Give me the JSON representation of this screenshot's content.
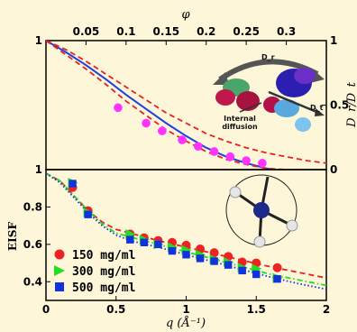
{
  "colors": {
    "background": "#fdf6d8",
    "blue_line": "#1f3fe0",
    "red_dash": "#e52222",
    "magenta": "#ff33ff",
    "red": "#ee2222",
    "green": "#22dd22",
    "blue": "#1133dd"
  },
  "labels": {
    "top_axis_symbol": "φ",
    "x_axis_title": "q (Å⁻¹)",
    "bottom_ylabel": "EISF",
    "right_ylabel": "D_r/D_t",
    "inset_dr": "D_r",
    "inset_dt": "D_t",
    "inset_internal_1": "Internal",
    "inset_internal_2": "diffusion"
  },
  "chart_data": [
    {
      "type": "scatter",
      "panel": "top",
      "top_axis": {
        "symbol": "φ",
        "ticks": [
          0.05,
          0.1,
          0.15,
          0.2,
          0.25,
          0.3
        ],
        "tick_labels": [
          "0.05",
          "0.1",
          "0.15",
          "0.2",
          "0.25",
          "0.3"
        ],
        "xlim": [
          0,
          0.35
        ]
      },
      "right_axis": {
        "label": "D_r/D_t",
        "ticks": [
          0,
          0.5,
          1
        ],
        "tick_labels": [
          "0",
          "0.5",
          "1"
        ],
        "ylim": [
          0,
          1
        ]
      },
      "left_axis": {
        "ticks": [
          1
        ],
        "tick_labels": [
          "1"
        ]
      },
      "series": [
        {
          "style": "marker",
          "x": [
            0.09,
            0.125,
            0.145,
            0.17,
            0.19,
            0.21,
            0.23,
            0.25,
            0.27
          ],
          "y": [
            0.48,
            0.36,
            0.3,
            0.23,
            0.18,
            0.14,
            0.1,
            0.07,
            0.05
          ]
        },
        {
          "style": "solid-line",
          "x": [
            0.0,
            0.025,
            0.05,
            0.075,
            0.1,
            0.125,
            0.15,
            0.175,
            0.2,
            0.225,
            0.25,
            0.275,
            0.3,
            0.325
          ],
          "y": [
            1.0,
            0.91,
            0.81,
            0.7,
            0.58,
            0.47,
            0.36,
            0.26,
            0.17,
            0.1,
            0.05,
            0.01,
            -0.02,
            -0.03
          ]
        },
        {
          "style": "dashed-upper",
          "x": [
            0.0,
            0.025,
            0.05,
            0.075,
            0.1,
            0.125,
            0.15,
            0.175,
            0.2,
            0.225,
            0.25,
            0.275,
            0.3,
            0.325,
            0.35
          ],
          "y": [
            1.0,
            0.93,
            0.84,
            0.74,
            0.64,
            0.54,
            0.44,
            0.36,
            0.28,
            0.22,
            0.17,
            0.13,
            0.1,
            0.07,
            0.05
          ]
        },
        {
          "style": "dashed-lower",
          "x": [
            0.0,
            0.025,
            0.05,
            0.075,
            0.1,
            0.125,
            0.15,
            0.175,
            0.2,
            0.225,
            0.25,
            0.275,
            0.3,
            0.325,
            0.35
          ],
          "y": [
            1.0,
            0.89,
            0.78,
            0.66,
            0.53,
            0.42,
            0.31,
            0.22,
            0.14,
            0.08,
            0.04,
            0.01,
            0.0,
            0.0,
            0.0
          ]
        }
      ]
    },
    {
      "type": "scatter",
      "panel": "bottom",
      "xlabel": "q (Å⁻¹)",
      "ylabel": "EISF",
      "xlim": [
        0,
        2
      ],
      "ylim": [
        0.3,
        1.0
      ],
      "x_ticks": [
        0,
        0.5,
        1,
        1.5,
        2
      ],
      "x_tick_labels": [
        "0",
        "0.5",
        "1",
        "1.5",
        "2"
      ],
      "y_ticks": [
        0.4,
        0.6,
        0.8,
        1
      ],
      "y_tick_labels": [
        "0.4",
        "0.6",
        "0.8",
        "1"
      ],
      "legend_position": "bottom-left",
      "series": [
        {
          "name": "150 mg/ml",
          "marker": "circle",
          "x": [
            0.19,
            0.3,
            0.6,
            0.7,
            0.8,
            0.9,
            1.0,
            1.1,
            1.2,
            1.3,
            1.4,
            1.5,
            1.65
          ],
          "y": [
            0.905,
            0.78,
            0.655,
            0.635,
            0.62,
            0.61,
            0.595,
            0.575,
            0.555,
            0.535,
            0.505,
            0.5,
            0.475
          ]
        },
        {
          "name": "300 mg/ml",
          "marker": "triangle-right",
          "x": [
            0.19,
            0.3,
            0.6,
            0.7,
            0.8,
            0.9,
            1.0,
            1.1,
            1.2,
            1.3,
            1.4,
            1.5,
            1.65
          ],
          "y": [
            0.93,
            0.77,
            0.655,
            0.625,
            0.6,
            0.585,
            0.57,
            0.545,
            0.52,
            0.505,
            0.475,
            0.47,
            0.42
          ]
        },
        {
          "name": "500 mg/ml",
          "marker": "square",
          "x": [
            0.19,
            0.3,
            0.6,
            0.7,
            0.8,
            0.9,
            1.0,
            1.1,
            1.2,
            1.3,
            1.4,
            1.5,
            1.65
          ],
          "y": [
            0.925,
            0.76,
            0.625,
            0.61,
            0.6,
            0.565,
            0.545,
            0.525,
            0.51,
            0.49,
            0.46,
            0.44,
            0.415
          ]
        },
        {
          "style": "dashed-red",
          "x": [
            0.0,
            0.1,
            0.2,
            0.3,
            0.4,
            0.5,
            0.6,
            0.8,
            1.0,
            1.2,
            1.4,
            1.6,
            1.8,
            2.0
          ],
          "y": [
            0.98,
            0.94,
            0.86,
            0.78,
            0.72,
            0.68,
            0.66,
            0.62,
            0.585,
            0.55,
            0.515,
            0.48,
            0.45,
            0.42
          ]
        },
        {
          "style": "dashdot-green",
          "x": [
            0.0,
            0.1,
            0.2,
            0.3,
            0.4,
            0.5,
            0.6,
            0.8,
            1.0,
            1.2,
            1.4,
            1.6,
            1.8,
            2.0
          ],
          "y": [
            0.98,
            0.94,
            0.86,
            0.78,
            0.71,
            0.66,
            0.64,
            0.6,
            0.56,
            0.52,
            0.48,
            0.44,
            0.41,
            0.38
          ]
        },
        {
          "style": "dotted-blue",
          "x": [
            0.0,
            0.1,
            0.2,
            0.3,
            0.4,
            0.5,
            0.6,
            0.8,
            1.0,
            1.2,
            1.4,
            1.6,
            1.8,
            2.0
          ],
          "y": [
            0.98,
            0.93,
            0.85,
            0.77,
            0.7,
            0.65,
            0.62,
            0.585,
            0.545,
            0.505,
            0.465,
            0.425,
            0.39,
            0.36
          ]
        }
      ]
    }
  ]
}
